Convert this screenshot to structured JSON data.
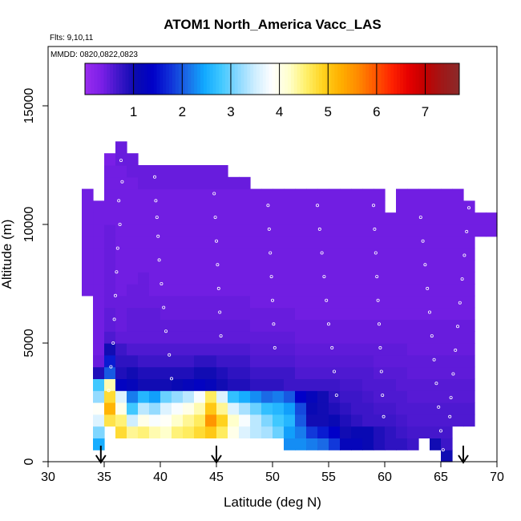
{
  "chart_data": {
    "type": "heatmap",
    "title": "ATOM1 North_America Vacc_LAS",
    "annotations": {
      "flights": "Flts: 9,10,11",
      "dates": "MMDD: 0820,0822,0823"
    },
    "xlabel": "Latitude (deg N)",
    "ylabel": "Altitude (m)",
    "xlim": [
      30,
      70
    ],
    "ylim": [
      0,
      17500
    ],
    "xticks": [
      30,
      35,
      40,
      45,
      50,
      55,
      60,
      65,
      70
    ],
    "yticks": [
      0,
      5000,
      10000,
      15000
    ],
    "grid": false,
    "colorbar": {
      "position": "top-inside",
      "range": [
        0,
        7.7
      ],
      "ticks": [
        1,
        2,
        3,
        4,
        5,
        6,
        7
      ],
      "colors": [
        "#9a2cf0",
        "#7a1fe6",
        "#3c16c8",
        "#0a0ab0",
        "#0000c8",
        "#1030d8",
        "#1a6ae6",
        "#10a8ff",
        "#40c8ff",
        "#8ad8ff",
        "#cfeeff",
        "#ffffff",
        "#ffffcc",
        "#fff06a",
        "#ffd21e",
        "#ffb000",
        "#ff8c00",
        "#ff5a00",
        "#ff2400",
        "#e60000",
        "#c00000",
        "#a01818",
        "#8a2a2a"
      ]
    },
    "arrows_latitude": [
      34.7,
      45,
      67
    ],
    "cell_size": {
      "dlat": 1,
      "dalt": 500
    },
    "columns": [
      {
        "lat": 34,
        "z0": 500,
        "vals": [
          2.5,
          3.1,
          3.6,
          3.9,
          3.2,
          2.8,
          0.9,
          0.45,
          0.4,
          0.4,
          0.4,
          0.4,
          0.4,
          0.4,
          0.4,
          0.4,
          0.4,
          0.4,
          0.4,
          0.4,
          0.4
        ]
      },
      {
        "lat": 35,
        "z0": 1500,
        "vals": [
          4.7,
          5.2,
          4.8,
          4.3,
          2.0,
          1.6,
          1.0,
          0.6,
          0.5,
          0.5,
          0.45,
          0.45,
          0.45,
          0.45,
          0.45,
          0.45,
          0.45,
          0.4,
          0.4,
          0.4,
          0.4,
          0.4,
          0.35
        ]
      },
      {
        "lat": 36,
        "z0": 1000,
        "vals": [
          4.8,
          4.5,
          4.0,
          3.6,
          1.3,
          0.9,
          0.8,
          0.7,
          0.5,
          0.45,
          0.45,
          0.45,
          0.4,
          0.4,
          0.4,
          0.4,
          0.4,
          0.4,
          0.4,
          0.4,
          0.4,
          0.4,
          0.4,
          0.45,
          0.45
        ]
      },
      {
        "lat": 37,
        "z0": 1000,
        "vals": [
          4.4,
          3.5,
          2.8,
          2.2,
          1.2,
          1.0,
          0.8,
          0.6,
          0.5,
          0.5,
          0.5,
          0.45,
          0.45,
          0.4,
          0.4,
          0.4,
          0.4,
          0.4,
          0.4,
          0.4,
          0.4,
          0.4,
          0.45,
          0.45
        ]
      },
      {
        "lat": 38,
        "z0": 1000,
        "vals": [
          4.5,
          4.0,
          3.4,
          2.6,
          1.0,
          0.9,
          0.7,
          0.6,
          0.5,
          0.5,
          0.5,
          0.45,
          0.45,
          0.45,
          0.4,
          0.4,
          0.4,
          0.4,
          0.4,
          0.4,
          0.4,
          0.45,
          0.45
        ]
      },
      {
        "lat": 39,
        "z0": 1000,
        "vals": [
          4.3,
          3.8,
          3.2,
          2.4,
          1.0,
          0.9,
          0.7,
          0.6,
          0.5,
          0.5,
          0.5,
          0.45,
          0.4,
          0.4,
          0.4,
          0.4,
          0.4,
          0.4,
          0.4,
          0.4,
          0.4,
          0.45,
          0.45
        ]
      },
      {
        "lat": 40,
        "z0": 1000,
        "vals": [
          4.2,
          3.9,
          3.6,
          3.0,
          1.0,
          0.9,
          0.7,
          0.6,
          0.5,
          0.5,
          0.45,
          0.45,
          0.4,
          0.4,
          0.4,
          0.4,
          0.4,
          0.4,
          0.4,
          0.4,
          0.4,
          0.45,
          0.45
        ]
      },
      {
        "lat": 41,
        "z0": 1000,
        "vals": [
          4.5,
          4.2,
          3.8,
          3.2,
          1.1,
          0.9,
          0.7,
          0.6,
          0.5,
          0.5,
          0.45,
          0.45,
          0.4,
          0.4,
          0.4,
          0.4,
          0.4,
          0.4,
          0.4,
          0.4,
          0.4,
          0.45,
          0.45
        ]
      },
      {
        "lat": 42,
        "z0": 1000,
        "vals": [
          4.6,
          4.4,
          4.0,
          3.4,
          1.2,
          0.9,
          0.7,
          0.6,
          0.5,
          0.5,
          0.45,
          0.45,
          0.4,
          0.4,
          0.4,
          0.4,
          0.4,
          0.4,
          0.4,
          0.4,
          0.4,
          0.45,
          0.45
        ]
      },
      {
        "lat": 43,
        "z0": 1000,
        "vals": [
          4.8,
          4.6,
          4.3,
          3.8,
          1.3,
          1.0,
          0.8,
          0.6,
          0.5,
          0.5,
          0.45,
          0.45,
          0.4,
          0.4,
          0.4,
          0.4,
          0.4,
          0.4,
          0.4,
          0.4,
          0.4,
          0.45,
          0.45
        ]
      },
      {
        "lat": 44,
        "z0": 1000,
        "vals": [
          5.0,
          5.5,
          5.0,
          4.6,
          1.2,
          1.0,
          0.8,
          0.6,
          0.5,
          0.5,
          0.45,
          0.45,
          0.4,
          0.4,
          0.4,
          0.4,
          0.4,
          0.4,
          0.4,
          0.4,
          0.4,
          0.45,
          0.45
        ]
      },
      {
        "lat": 45,
        "z0": 1000,
        "vals": [
          4.6,
          4.9,
          4.4,
          3.6,
          1.0,
          0.9,
          0.7,
          0.6,
          0.5,
          0.5,
          0.45,
          0.45,
          0.4,
          0.4,
          0.4,
          0.4,
          0.4,
          0.4,
          0.4,
          0.4,
          0.4,
          0.45,
          0.45
        ]
      },
      {
        "lat": 46,
        "z0": 1000,
        "vals": [
          4.0,
          4.2,
          3.6,
          2.7,
          0.9,
          0.8,
          0.7,
          0.6,
          0.5,
          0.5,
          0.45,
          0.45,
          0.4,
          0.4,
          0.4,
          0.4,
          0.4,
          0.4,
          0.4,
          0.4,
          0.4,
          0.45
        ]
      },
      {
        "lat": 47,
        "z0": 1000,
        "vals": [
          3.6,
          3.8,
          3.3,
          2.5,
          0.9,
          0.8,
          0.7,
          0.6,
          0.5,
          0.5,
          0.45,
          0.45,
          0.4,
          0.4,
          0.4,
          0.4,
          0.4,
          0.4,
          0.4,
          0.4,
          0.4,
          0.45
        ]
      },
      {
        "lat": 48,
        "z0": 1000,
        "vals": [
          3.4,
          3.4,
          3.0,
          2.3,
          0.8,
          0.7,
          0.6,
          0.55,
          0.5,
          0.45,
          0.45,
          0.4,
          0.4,
          0.4,
          0.4,
          0.4,
          0.4,
          0.4,
          0.4,
          0.4,
          0.4
        ]
      },
      {
        "lat": 49,
        "z0": 1000,
        "vals": [
          3.3,
          3.1,
          2.7,
          2.1,
          0.8,
          0.7,
          0.6,
          0.55,
          0.5,
          0.45,
          0.45,
          0.4,
          0.4,
          0.4,
          0.4,
          0.4,
          0.4,
          0.4,
          0.4,
          0.4,
          0.4
        ]
      },
      {
        "lat": 50,
        "z0": 1000,
        "vals": [
          3.0,
          2.8,
          2.6,
          2.2,
          0.8,
          0.7,
          0.6,
          0.55,
          0.5,
          0.45,
          0.45,
          0.4,
          0.4,
          0.4,
          0.4,
          0.4,
          0.4,
          0.4,
          0.4,
          0.4,
          0.4
        ]
      },
      {
        "lat": 51,
        "z0": 500,
        "vals": [
          2.3,
          2.4,
          2.6,
          2.4,
          2.0,
          0.7,
          0.7,
          0.6,
          0.55,
          0.5,
          0.45,
          0.45,
          0.4,
          0.4,
          0.4,
          0.4,
          0.4,
          0.4,
          0.4,
          0.4,
          0.4,
          0.4
        ]
      },
      {
        "lat": 52,
        "z0": 500,
        "vals": [
          2.3,
          2.2,
          2.0,
          1.9,
          1.4,
          0.7,
          0.6,
          0.55,
          0.5,
          0.45,
          0.45,
          0.4,
          0.4,
          0.4,
          0.4,
          0.4,
          0.4,
          0.4,
          0.4,
          0.4,
          0.4,
          0.4
        ]
      },
      {
        "lat": 53,
        "z0": 500,
        "vals": [
          2.2,
          1.8,
          1.0,
          1.1,
          1.2,
          0.7,
          0.6,
          0.55,
          0.5,
          0.45,
          0.45,
          0.4,
          0.4,
          0.4,
          0.4,
          0.4,
          0.4,
          0.4,
          0.4,
          0.4,
          0.4,
          0.4
        ]
      },
      {
        "lat": 54,
        "z0": 500,
        "vals": [
          2.1,
          1.6,
          1.0,
          1.0,
          1.0,
          0.7,
          0.6,
          0.55,
          0.5,
          0.45,
          0.45,
          0.4,
          0.4,
          0.4,
          0.4,
          0.4,
          0.4,
          0.4,
          0.4,
          0.4,
          0.4,
          0.4
        ]
      },
      {
        "lat": 55,
        "z0": 500,
        "vals": [
          1.8,
          1.4,
          1.1,
          0.9,
          0.8,
          0.7,
          0.6,
          0.55,
          0.5,
          0.45,
          0.45,
          0.4,
          0.4,
          0.4,
          0.4,
          0.4,
          0.4,
          0.4,
          0.4,
          0.4,
          0.4,
          0.4
        ]
      },
      {
        "lat": 56,
        "z0": 500,
        "vals": [
          1.2,
          1.0,
          0.9,
          0.8,
          0.7,
          0.65,
          0.6,
          0.55,
          0.5,
          0.45,
          0.45,
          0.4,
          0.4,
          0.4,
          0.4,
          0.4,
          0.4,
          0.4,
          0.4,
          0.4,
          0.4,
          0.4
        ]
      },
      {
        "lat": 57,
        "z0": 500,
        "vals": [
          1.2,
          1.1,
          0.8,
          0.7,
          0.7,
          0.65,
          0.6,
          0.55,
          0.5,
          0.45,
          0.45,
          0.4,
          0.4,
          0.4,
          0.4,
          0.4,
          0.4,
          0.4,
          0.4,
          0.4,
          0.4,
          0.4
        ]
      },
      {
        "lat": 58,
        "z0": 500,
        "vals": [
          1.1,
          1.1,
          0.7,
          0.7,
          0.65,
          0.6,
          0.6,
          0.55,
          0.5,
          0.45,
          0.45,
          0.4,
          0.4,
          0.4,
          0.4,
          0.4,
          0.4,
          0.4,
          0.4,
          0.4,
          0.4,
          0.4
        ]
      },
      {
        "lat": 59,
        "z0": 500,
        "vals": [
          0.9,
          0.9,
          0.7,
          0.65,
          0.6,
          0.6,
          0.55,
          0.5,
          0.5,
          0.45,
          0.45,
          0.4,
          0.4,
          0.4,
          0.4,
          0.4,
          0.4,
          0.4,
          0.4,
          0.4,
          0.4,
          0.4
        ]
      },
      {
        "lat": 60,
        "z0": 500,
        "vals": [
          0.8,
          0.8,
          0.7,
          0.65,
          0.6,
          0.6,
          0.55,
          0.5,
          0.5,
          0.45,
          0.45,
          0.4,
          0.4,
          0.4,
          0.4,
          0.4,
          0.4,
          0.4,
          0.4,
          0.4
        ]
      },
      {
        "lat": 61,
        "z0": 500,
        "vals": [
          0.8,
          0.7,
          0.65,
          0.6,
          0.6,
          0.55,
          0.55,
          0.5,
          0.5,
          0.45,
          0.45,
          0.4,
          0.4,
          0.4,
          0.4,
          0.4,
          0.4,
          0.4,
          0.4,
          0.4,
          0.4,
          0.4
        ]
      },
      {
        "lat": 62,
        "z0": 500,
        "vals": [
          0.7,
          0.65,
          0.6,
          0.6,
          0.55,
          0.55,
          0.5,
          0.5,
          0.45,
          0.45,
          0.45,
          0.4,
          0.4,
          0.4,
          0.4,
          0.4,
          0.4,
          0.4,
          0.4,
          0.4,
          0.4,
          0.4
        ]
      },
      {
        "lat": 63,
        "z0": 1000,
        "vals": [
          0.65,
          0.6,
          0.6,
          0.55,
          0.55,
          0.5,
          0.5,
          0.45,
          0.45,
          0.45,
          0.4,
          0.4,
          0.4,
          0.4,
          0.4,
          0.4,
          0.4,
          0.4,
          0.4,
          0.4,
          0.4
        ]
      },
      {
        "lat": 64,
        "z0": 500,
        "vals": [
          1.0,
          0.65,
          0.6,
          0.6,
          0.55,
          0.55,
          0.5,
          0.5,
          0.45,
          0.45,
          0.45,
          0.4,
          0.4,
          0.4,
          0.4,
          0.4,
          0.4,
          0.4,
          0.4,
          0.4,
          0.4,
          0.4
        ]
      },
      {
        "lat": 65,
        "z0": 0,
        "vals": [
          1.0,
          0.7,
          0.65,
          0.6,
          0.6,
          0.55,
          0.55,
          0.5,
          0.5,
          0.45,
          0.45,
          0.45,
          0.4,
          0.4,
          0.4,
          0.4,
          0.4,
          0.4,
          0.4,
          0.4,
          0.4,
          0.4,
          0.4
        ]
      },
      {
        "lat": 66,
        "z0": 1500,
        "vals": [
          0.6,
          0.6,
          0.55,
          0.55,
          0.5,
          0.5,
          0.45,
          0.45,
          0.45,
          0.4,
          0.4,
          0.4,
          0.4,
          0.4,
          0.4,
          0.4,
          0.4,
          0.4,
          0.4,
          0.4
        ]
      },
      {
        "lat": 67,
        "z0": 1500,
        "vals": [
          0.6,
          0.6,
          0.55,
          0.55,
          0.5,
          0.5,
          0.45,
          0.45,
          0.45,
          0.4,
          0.4,
          0.4,
          0.4,
          0.4,
          0.4,
          0.4,
          0.4,
          0.4,
          0.4
        ]
      },
      {
        "lat": 68,
        "z0": 9500,
        "vals": [
          0.4,
          0.4
        ]
      },
      {
        "lat": 69,
        "z0": 9500,
        "vals": [
          0.4,
          0.4
        ]
      }
    ],
    "extra_cells": [
      {
        "lat": 33,
        "z0": 7000,
        "vals": [
          0.4,
          0.4,
          0.4,
          0.4,
          0.4,
          0.4,
          0.4,
          0.4,
          0.4
        ]
      }
    ]
  }
}
